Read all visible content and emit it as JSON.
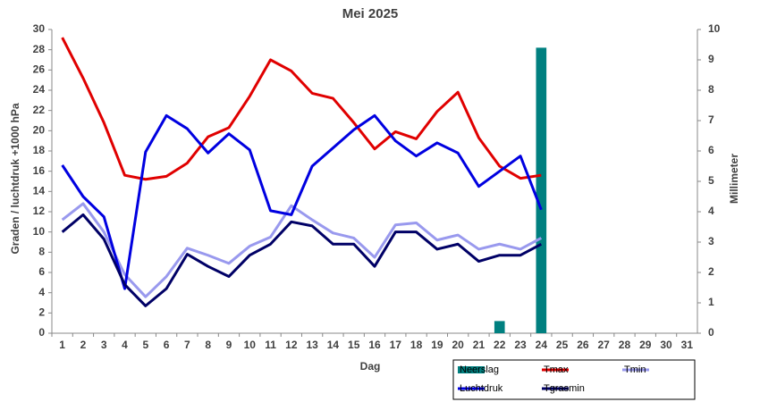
{
  "chart_data": {
    "type": "line",
    "title": "Mei 2025",
    "xlabel": "Dag",
    "ylabel": "Graden / luchtdruk +1000 hPa",
    "y2label": "Millimeter",
    "categories": [
      "1",
      "2",
      "3",
      "4",
      "5",
      "6",
      "7",
      "8",
      "9",
      "10",
      "11",
      "12",
      "13",
      "14",
      "15",
      "16",
      "17",
      "18",
      "19",
      "20",
      "21",
      "22",
      "23",
      "24",
      "25",
      "26",
      "27",
      "28",
      "29",
      "30",
      "31"
    ],
    "ylim": [
      0,
      30
    ],
    "yticks": [
      0,
      2,
      4,
      6,
      8,
      10,
      12,
      14,
      16,
      18,
      20,
      22,
      24,
      26,
      28,
      30
    ],
    "y2lim": [
      0,
      10
    ],
    "y2ticks": [
      0,
      1,
      2,
      3,
      4,
      5,
      6,
      7,
      8,
      9,
      10
    ],
    "grid": false,
    "legend": "bottom-right",
    "series": [
      {
        "name": "Neerslag",
        "type": "bar",
        "axis": "y2",
        "color": "#008080",
        "values": [
          0,
          0,
          0,
          0,
          0,
          0,
          0,
          0,
          0,
          0,
          0,
          0,
          0,
          0,
          0,
          0,
          0,
          0,
          0,
          0,
          0,
          0.4,
          0,
          9.4,
          null,
          null,
          null,
          null,
          null,
          null,
          null
        ]
      },
      {
        "name": "Tmax",
        "color": "#e00000",
        "values": [
          29.2,
          25.2,
          20.8,
          15.6,
          15.2,
          15.5,
          16.8,
          19.4,
          20.3,
          23.4,
          27.0,
          25.9,
          23.7,
          23.2,
          20.8,
          18.2,
          19.9,
          19.2,
          21.9,
          23.8,
          19.3,
          16.5,
          15.3,
          15.6,
          null,
          null,
          null,
          null,
          null,
          null,
          null
        ]
      },
      {
        "name": "Tmin",
        "color": "#9999ee",
        "values": [
          11.2,
          12.8,
          10.0,
          5.8,
          3.6,
          5.6,
          8.4,
          7.7,
          6.9,
          8.6,
          9.5,
          12.6,
          11.2,
          9.9,
          9.4,
          7.5,
          10.7,
          10.9,
          9.2,
          9.7,
          8.3,
          8.8,
          8.3,
          9.4,
          null,
          null,
          null,
          null,
          null,
          null,
          null
        ]
      },
      {
        "name": "Luchtdruk",
        "color": "#0000e0",
        "values": [
          16.6,
          13.5,
          11.5,
          4.4,
          17.9,
          21.5,
          20.2,
          17.8,
          19.7,
          18.1,
          12.1,
          11.7,
          16.5,
          18.3,
          20.1,
          21.5,
          19.0,
          17.5,
          18.8,
          17.8,
          14.5,
          16.0,
          17.5,
          12.2,
          null,
          null,
          null,
          null,
          null,
          null,
          null
        ]
      },
      {
        "name": "Tgrasmin",
        "color": "#000066",
        "values": [
          10.0,
          11.7,
          9.3,
          4.8,
          2.7,
          4.4,
          7.8,
          6.6,
          5.6,
          7.7,
          8.8,
          11.0,
          10.6,
          8.8,
          8.8,
          6.6,
          10.0,
          10.0,
          8.3,
          8.8,
          7.1,
          7.7,
          7.7,
          8.8,
          null,
          null,
          null,
          null,
          null,
          null,
          null
        ]
      }
    ]
  }
}
